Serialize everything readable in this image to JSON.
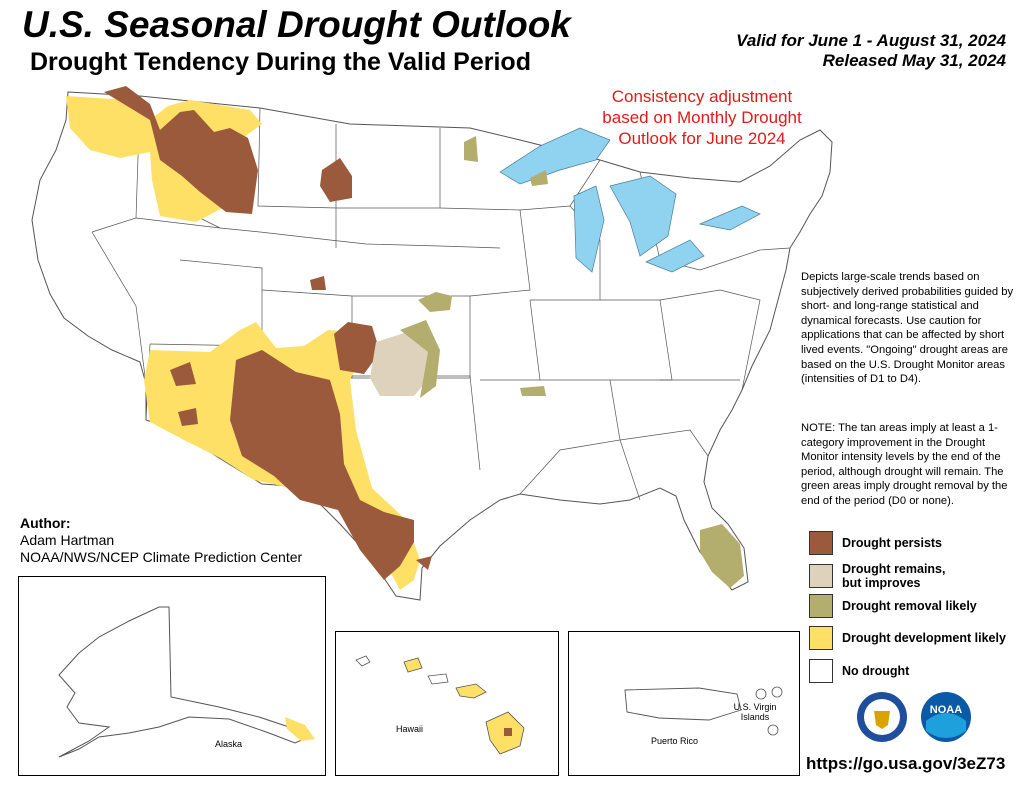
{
  "title": "U.S. Seasonal Drought Outlook",
  "subtitle": "Drought Tendency During the Valid Period",
  "valid_period": "Valid for June 1 - August 31, 2024",
  "released": "Released May 31, 2024",
  "consistency_note": "Consistency adjustment based on Monthly Drought Outlook for June 2024",
  "description": "Depicts large-scale trends based on subjectively derived probabilities guided by short- and long-range statistical and dynamical forecasts. Use caution for applications that can be affected by short lived events. \"Ongoing\" drought areas are based on the U.S. Drought Monitor areas (intensities of D1 to D4).",
  "note": "NOTE: The tan areas imply at least a 1-category improvement in the Drought Monitor intensity levels by the end of the period, although drought will remain. The green areas imply drought removal by the end of the period (D0 or none).",
  "author": {
    "label": "Author:",
    "name": "Adam Hartman",
    "org": "NOAA/NWS/NCEP Climate Prediction Center"
  },
  "legend": [
    {
      "label": "Drought persists",
      "color": "#9c5a3c"
    },
    {
      "label": "Drought remains,\nbut improves",
      "color": "#ded2bc"
    },
    {
      "label": "Drought removal likely",
      "color": "#b3ad6e"
    },
    {
      "label": "Drought development likely",
      "color": "#ffe066"
    },
    {
      "label": "No drought",
      "color": "#ffffff"
    }
  ],
  "insets": {
    "alaska": "Alaska",
    "hawaii": "Hawaii",
    "puerto_rico": "Puerto Rico",
    "virgin_islands": "U.S. Virgin Islands"
  },
  "url": "https://go.usa.gov/3eZ73",
  "colors": {
    "persists": "#9c5a3c",
    "improves": "#ded2bc",
    "removal": "#b3ad6e",
    "development": "#ffe066",
    "water": "#8fd3f0",
    "consistency_text": "#e21a1a"
  },
  "logos": {
    "commerce": "Department of Commerce seal",
    "noaa": "NOAA"
  }
}
